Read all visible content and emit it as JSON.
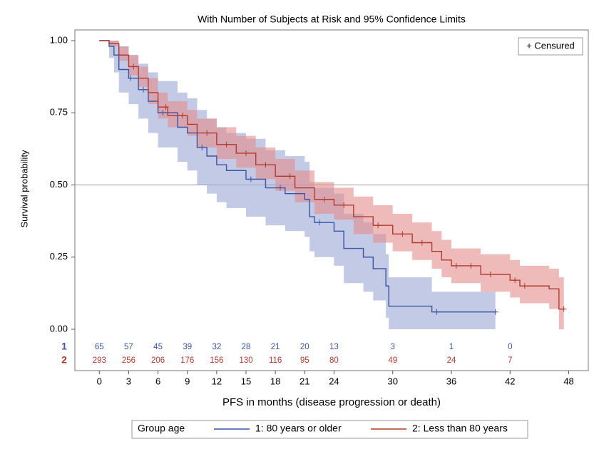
{
  "chart_data": {
    "type": "km",
    "title": "With Number of Subjects at Risk and 95% Confidence Limits",
    "xlabel": "PFS in months (disease progression or death)",
    "ylabel": "Survival probability",
    "censor_legend": "+ Censured",
    "legend_title": "Group age",
    "xlim": [
      -2.5,
      50
    ],
    "ylim": [
      0,
      1
    ],
    "xticks": [
      0,
      3,
      6,
      9,
      12,
      15,
      18,
      21,
      24,
      30,
      36,
      42,
      48
    ],
    "yticks": [
      {
        "value": 0,
        "label": "0.00"
      },
      {
        "value": 0.25,
        "label": "0.25"
      },
      {
        "value": 0.5,
        "label": "0.50"
      },
      {
        "value": 0.75,
        "label": "0.75"
      },
      {
        "value": 1,
        "label": "1.00"
      }
    ],
    "reference_line": 0.5,
    "risk_times": [
      0,
      3,
      6,
      9,
      12,
      15,
      18,
      21,
      24,
      30,
      36,
      42
    ],
    "series": [
      {
        "name": "1: 80 years or older",
        "label": "1",
        "color": "#3b55a5",
        "band_color": "#9aa6d6",
        "x": [
          0,
          1,
          1.5,
          2,
          3,
          4,
          5,
          6,
          8,
          9,
          10,
          11,
          12,
          13,
          15,
          17,
          19,
          21,
          21.5,
          22,
          24,
          25,
          27,
          28,
          29.3,
          29.6,
          34,
          40.5
        ],
        "values": [
          1,
          0.98,
          0.95,
          0.9,
          0.87,
          0.83,
          0.79,
          0.75,
          0.7,
          0.68,
          0.63,
          0.6,
          0.57,
          0.55,
          0.52,
          0.49,
          0.47,
          0.45,
          0.39,
          0.37,
          0.34,
          0.28,
          0.25,
          0.21,
          0.15,
          0.08,
          0.06,
          0.06
        ],
        "lower": [
          1,
          0.94,
          0.89,
          0.82,
          0.78,
          0.73,
          0.68,
          0.63,
          0.58,
          0.55,
          0.5,
          0.47,
          0.44,
          0.42,
          0.39,
          0.36,
          0.34,
          0.32,
          0.27,
          0.25,
          0.22,
          0.16,
          0.13,
          0.1,
          0.04,
          0,
          0,
          0
        ],
        "upper": [
          1,
          1,
          1,
          0.98,
          0.95,
          0.92,
          0.89,
          0.86,
          0.82,
          0.8,
          0.76,
          0.73,
          0.7,
          0.68,
          0.66,
          0.62,
          0.6,
          0.58,
          0.51,
          0.49,
          0.47,
          0.4,
          0.37,
          0.33,
          0.26,
          0.18,
          0.13,
          0.13
        ],
        "censor_x": [
          3.2,
          4.5,
          6.5,
          10.5,
          15.5,
          18.5,
          22.5,
          34.5,
          40.5
        ],
        "censor_y": [
          0.87,
          0.83,
          0.75,
          0.63,
          0.52,
          0.49,
          0.37,
          0.06,
          0.06
        ],
        "at_risk": [
          "65",
          "57",
          "45",
          "39",
          "32",
          "28",
          "21",
          "20",
          "13",
          "3",
          "1",
          "0"
        ]
      },
      {
        "name": "2: Less than 80 years",
        "label": "2",
        "color": "#b03a2e",
        "band_color": "#e48c8c",
        "x": [
          0,
          1,
          2,
          3,
          4,
          5,
          6,
          7,
          9,
          10,
          12,
          14,
          16,
          18,
          20,
          22,
          24,
          26,
          28,
          30,
          32,
          34,
          35,
          36,
          39,
          42,
          43,
          46,
          47,
          47.5
        ],
        "values": [
          1,
          0.99,
          0.95,
          0.91,
          0.87,
          0.82,
          0.77,
          0.74,
          0.71,
          0.68,
          0.64,
          0.61,
          0.57,
          0.53,
          0.49,
          0.45,
          0.43,
          0.39,
          0.36,
          0.33,
          0.3,
          0.27,
          0.24,
          0.22,
          0.19,
          0.17,
          0.15,
          0.14,
          0.07,
          0.07
        ],
        "lower": [
          1,
          0.98,
          0.93,
          0.88,
          0.84,
          0.78,
          0.73,
          0.7,
          0.67,
          0.63,
          0.59,
          0.56,
          0.52,
          0.48,
          0.44,
          0.4,
          0.38,
          0.33,
          0.3,
          0.27,
          0.24,
          0.21,
          0.18,
          0.16,
          0.13,
          0.11,
          0.09,
          0.07,
          0,
          0
        ],
        "upper": [
          1,
          1,
          0.98,
          0.95,
          0.91,
          0.87,
          0.82,
          0.79,
          0.76,
          0.73,
          0.7,
          0.67,
          0.63,
          0.59,
          0.55,
          0.51,
          0.49,
          0.46,
          0.43,
          0.4,
          0.37,
          0.34,
          0.31,
          0.28,
          0.26,
          0.24,
          0.22,
          0.21,
          0.18,
          0.18
        ],
        "censor_x": [
          3.5,
          6.8,
          8.5,
          11,
          13,
          15,
          17,
          19.5,
          23,
          25,
          28.5,
          31,
          33,
          36.5,
          38,
          40,
          42.5,
          43.5,
          47.5
        ],
        "censor_y": [
          0.91,
          0.77,
          0.74,
          0.68,
          0.64,
          0.61,
          0.57,
          0.53,
          0.45,
          0.43,
          0.36,
          0.33,
          0.3,
          0.22,
          0.22,
          0.19,
          0.17,
          0.15,
          0.07
        ],
        "at_risk": [
          "293",
          "256",
          "206",
          "176",
          "156",
          "130",
          "116",
          "95",
          "80",
          "49",
          "24",
          "7"
        ]
      }
    ]
  }
}
